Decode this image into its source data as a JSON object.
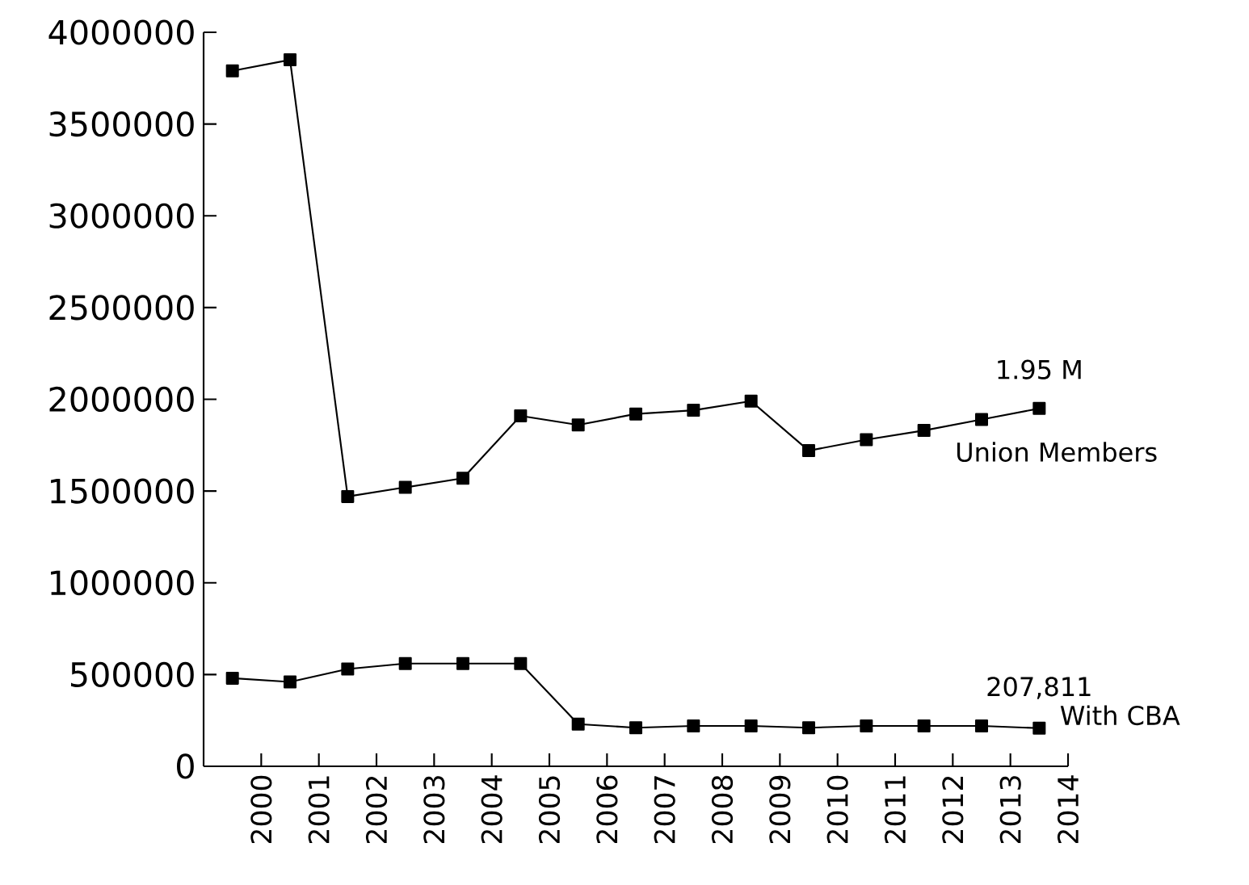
{
  "chart_data": {
    "type": "line",
    "marker": "square",
    "grid": false,
    "xlim": [
      1999,
      2014
    ],
    "xticks": [
      2000,
      2001,
      2002,
      2003,
      2004,
      2005,
      2006,
      2007,
      2008,
      2009,
      2010,
      2011,
      2012,
      2013,
      2014
    ],
    "ylim": [
      0,
      4000000
    ],
    "yticks": [
      0,
      500000,
      1000000,
      1500000,
      2000000,
      2500000,
      3000000,
      3500000,
      4000000
    ],
    "x": [
      1999.5,
      2000.5,
      2001.5,
      2002.5,
      2003.5,
      2004.5,
      2005.5,
      2006.5,
      2007.5,
      2008.5,
      2009.5,
      2010.5,
      2011.5,
      2012.5,
      2013.5
    ],
    "series": [
      {
        "name": "Union Members",
        "color": "#000000",
        "values": [
          3790000,
          3850000,
          1470000,
          1520000,
          1570000,
          1910000,
          1860000,
          1920000,
          1940000,
          1990000,
          1720000,
          1780000,
          1830000,
          1890000,
          1950000
        ],
        "value_labels": [
          null,
          null,
          null,
          null,
          null,
          null,
          null,
          null,
          null,
          null,
          null,
          null,
          null,
          null,
          "1.95 M"
        ]
      },
      {
        "name": "With CBA",
        "color": "#000000",
        "values": [
          480000,
          460000,
          530000,
          560000,
          560000,
          560000,
          230000,
          210000,
          220000,
          220000,
          210000,
          220000,
          220000,
          220000,
          207811
        ],
        "value_labels": [
          null,
          null,
          null,
          null,
          null,
          null,
          null,
          null,
          null,
          null,
          null,
          null,
          null,
          null,
          "207,811"
        ]
      }
    ]
  }
}
